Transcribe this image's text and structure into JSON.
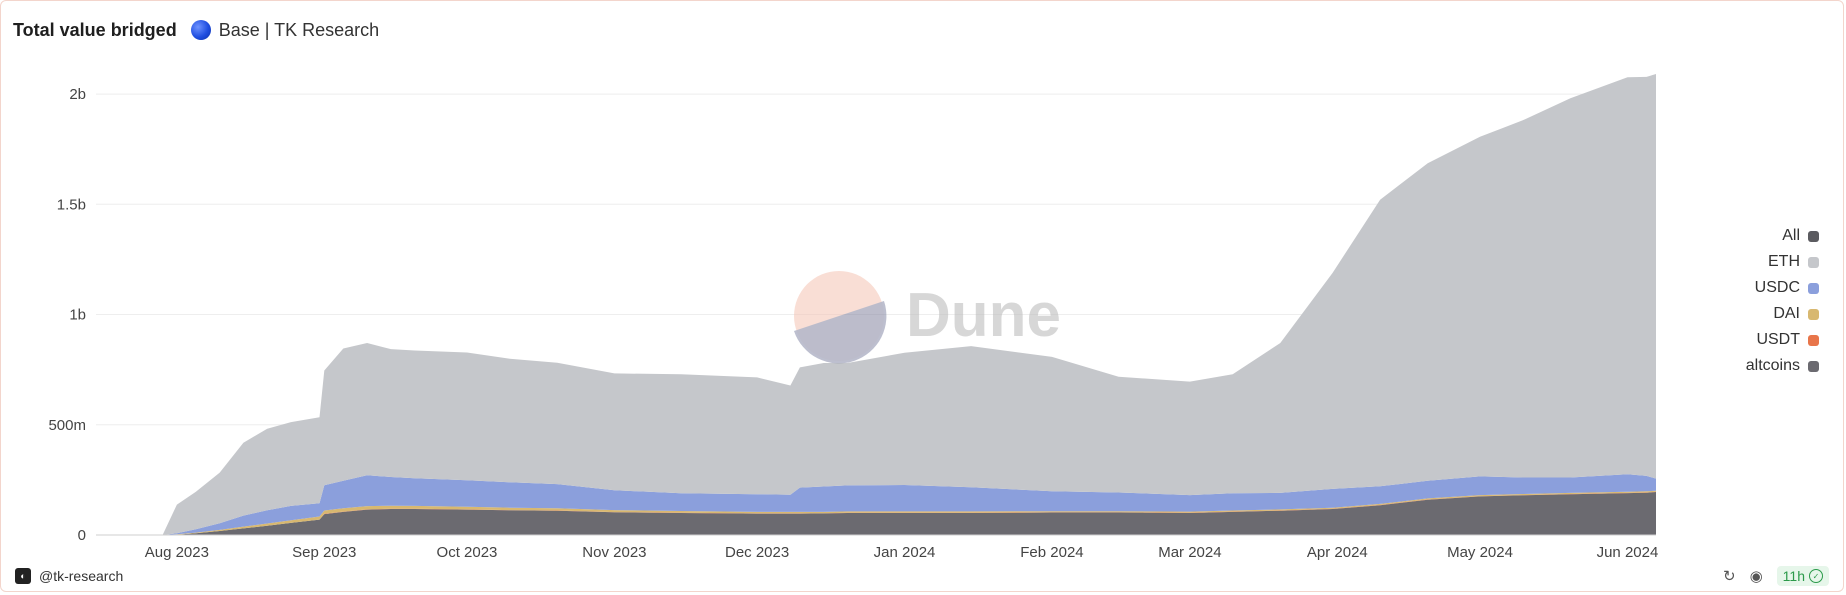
{
  "header": {
    "title": "Total value bridged",
    "query_label": "Base | TK Research"
  },
  "watermark": "Dune",
  "footer": {
    "author": "@tk-research",
    "age": "11h"
  },
  "chart_data": {
    "type": "area",
    "stacked": true,
    "title": "Total value bridged",
    "xlabel": "",
    "ylabel": "",
    "ylim": [
      0,
      2150000000
    ],
    "yticks": [
      {
        "value": 0,
        "label": "0"
      },
      {
        "value": 500000000,
        "label": "500m"
      },
      {
        "value": 1000000000,
        "label": "1b"
      },
      {
        "value": 1500000000,
        "label": "1.5b"
      },
      {
        "value": 2000000000,
        "label": "2b"
      }
    ],
    "xticks": [
      {
        "date": "2023-08-01",
        "label": "Aug 2023"
      },
      {
        "date": "2023-09-01",
        "label": "Sep 2023"
      },
      {
        "date": "2023-10-01",
        "label": "Oct 2023"
      },
      {
        "date": "2023-11-01",
        "label": "Nov 2023"
      },
      {
        "date": "2023-12-01",
        "label": "Dec 2023"
      },
      {
        "date": "2024-01-01",
        "label": "Jan 2024"
      },
      {
        "date": "2024-02-01",
        "label": "Feb 2024"
      },
      {
        "date": "2024-03-01",
        "label": "Mar 2024"
      },
      {
        "date": "2024-04-01",
        "label": "Apr 2024"
      },
      {
        "date": "2024-05-01",
        "label": "May 2024"
      },
      {
        "date": "2024-06-01",
        "label": "Jun 2024"
      }
    ],
    "x_range": [
      "2023-07-15",
      "2024-06-07"
    ],
    "grid": true,
    "legend_position": "right",
    "legend": [
      {
        "name": "All",
        "color": "#5b5b60"
      },
      {
        "name": "ETH",
        "color": "#c5c7cb"
      },
      {
        "name": "USDC",
        "color": "#8b9fdc"
      },
      {
        "name": "DAI",
        "color": "#d8b870"
      },
      {
        "name": "USDT",
        "color": "#e8754a"
      },
      {
        "name": "altcoins",
        "color": "#6b6a70"
      }
    ],
    "x": [
      "2023-07-15",
      "2023-07-29",
      "2023-08-01",
      "2023-08-05",
      "2023-08-10",
      "2023-08-15",
      "2023-08-20",
      "2023-08-25",
      "2023-08-31",
      "2023-09-01",
      "2023-09-05",
      "2023-09-10",
      "2023-09-15",
      "2023-09-20",
      "2023-10-01",
      "2023-10-10",
      "2023-10-20",
      "2023-11-01",
      "2023-11-15",
      "2023-12-01",
      "2023-12-08",
      "2023-12-10",
      "2023-12-15",
      "2023-12-20",
      "2024-01-01",
      "2024-01-15",
      "2024-02-01",
      "2024-02-15",
      "2024-03-01",
      "2024-03-10",
      "2024-03-20",
      "2024-03-31",
      "2024-04-10",
      "2024-04-20",
      "2024-05-01",
      "2024-05-10",
      "2024-05-20",
      "2024-06-01",
      "2024-06-05",
      "2024-06-07"
    ],
    "series": [
      {
        "name": "altcoins",
        "color": "#6b6a70",
        "values": [
          0,
          0,
          2000000,
          8000000,
          18000000,
          30000000,
          42000000,
          55000000,
          70000000,
          95000000,
          105000000,
          115000000,
          118000000,
          118000000,
          115000000,
          112000000,
          110000000,
          103000000,
          100000000,
          97000000,
          97000000,
          97000000,
          98000000,
          100000000,
          100000000,
          100000000,
          102000000,
          102000000,
          100000000,
          105000000,
          110000000,
          118000000,
          135000000,
          160000000,
          175000000,
          180000000,
          185000000,
          190000000,
          192000000,
          195000000
        ]
      },
      {
        "name": "USDT",
        "color": "#e8754a",
        "values": [
          0,
          0,
          0,
          0,
          0,
          0,
          0,
          0,
          0,
          1000000,
          1000000,
          1000000,
          1000000,
          1000000,
          1000000,
          1000000,
          1000000,
          1000000,
          1000000,
          1000000,
          1000000,
          1000000,
          1000000,
          1000000,
          1000000,
          1000000,
          1000000,
          1000000,
          1000000,
          1000000,
          1000000,
          1000000,
          1000000,
          1000000,
          1000000,
          1000000,
          1000000,
          1000000,
          1000000,
          1000000
        ]
      },
      {
        "name": "DAI",
        "color": "#d8b870",
        "values": [
          0,
          0,
          1000000,
          3000000,
          5000000,
          8000000,
          10000000,
          12000000,
          14000000,
          15000000,
          15000000,
          15000000,
          14000000,
          13000000,
          12000000,
          11000000,
          10000000,
          9000000,
          8000000,
          7000000,
          7000000,
          7000000,
          6000000,
          6000000,
          6000000,
          6000000,
          5000000,
          5000000,
          5000000,
          5000000,
          5000000,
          5000000,
          5000000,
          5000000,
          5000000,
          5000000,
          5000000,
          5000000,
          5000000,
          5000000
        ]
      },
      {
        "name": "USDC",
        "color": "#8b9fdc",
        "values": [
          0,
          0,
          5000000,
          15000000,
          30000000,
          50000000,
          60000000,
          65000000,
          60000000,
          115000000,
          125000000,
          140000000,
          130000000,
          125000000,
          120000000,
          115000000,
          110000000,
          90000000,
          80000000,
          80000000,
          78000000,
          110000000,
          115000000,
          118000000,
          120000000,
          110000000,
          90000000,
          85000000,
          75000000,
          78000000,
          75000000,
          85000000,
          80000000,
          80000000,
          85000000,
          75000000,
          70000000,
          80000000,
          70000000,
          55000000
        ]
      },
      {
        "name": "ETH",
        "color": "#c5c7cb",
        "values": [
          0,
          0,
          130000000,
          170000000,
          230000000,
          330000000,
          370000000,
          380000000,
          390000000,
          520000000,
          600000000,
          600000000,
          580000000,
          580000000,
          580000000,
          560000000,
          550000000,
          530000000,
          540000000,
          530000000,
          495000000,
          545000000,
          560000000,
          555000000,
          600000000,
          640000000,
          610000000,
          525000000,
          515000000,
          540000000,
          680000000,
          980000000,
          1300000000,
          1440000000,
          1540000000,
          1620000000,
          1720000000,
          1800000000,
          1810000000,
          1835000000
        ]
      }
    ]
  }
}
